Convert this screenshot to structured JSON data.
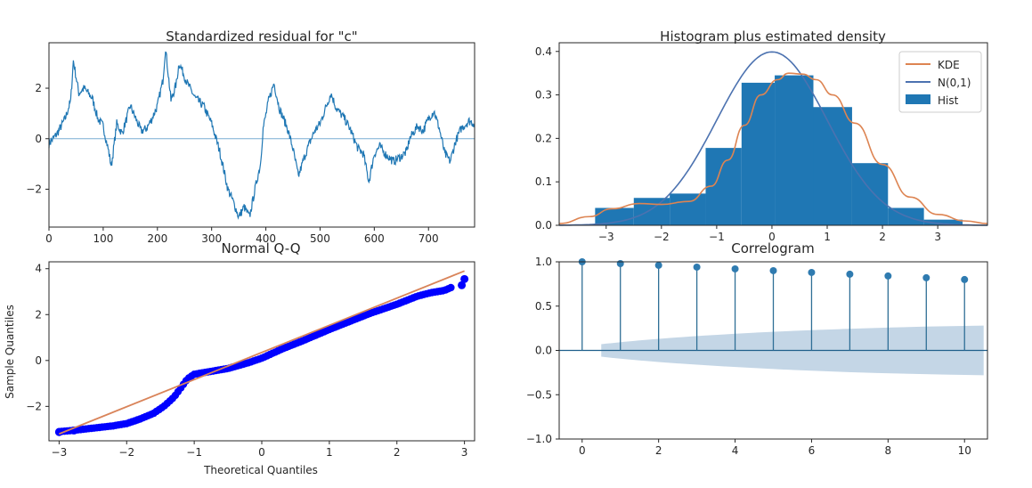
{
  "colors": {
    "series_blue": "#1f77b4",
    "kde_orange": "#dd8452",
    "normal_gray": "#4c72b0",
    "qq_point": "#0000ff",
    "qq_line": "#d9845a",
    "conf_band": "#b0c8dd",
    "axis": "#262626"
  },
  "chart_data": [
    {
      "type": "line",
      "title": "Standardized residual for \"c\"",
      "xlabel": "",
      "ylabel": "",
      "xlim": [
        0,
        785
      ],
      "ylim": [
        -3.5,
        3.8
      ],
      "x_ticks": [
        0,
        100,
        200,
        300,
        400,
        500,
        600,
        700
      ],
      "y_ticks": [
        -2,
        0,
        2
      ],
      "grid": false,
      "reference_line_y": 0,
      "keypoints": [
        [
          0,
          -0.2
        ],
        [
          15,
          0.2
        ],
        [
          30,
          0.8
        ],
        [
          40,
          1.5
        ],
        [
          45,
          3.1
        ],
        [
          55,
          1.8
        ],
        [
          65,
          2.0
        ],
        [
          80,
          1.6
        ],
        [
          90,
          0.8
        ],
        [
          100,
          0.5
        ],
        [
          110,
          -0.5
        ],
        [
          115,
          -1.1
        ],
        [
          125,
          0.6
        ],
        [
          135,
          0.2
        ],
        [
          150,
          1.3
        ],
        [
          160,
          0.8
        ],
        [
          170,
          0.3
        ],
        [
          180,
          0.4
        ],
        [
          190,
          0.8
        ],
        [
          200,
          1.3
        ],
        [
          210,
          2.3
        ],
        [
          215,
          3.6
        ],
        [
          225,
          1.5
        ],
        [
          235,
          2.2
        ],
        [
          240,
          3.0
        ],
        [
          255,
          2.2
        ],
        [
          270,
          1.6
        ],
        [
          285,
          1.3
        ],
        [
          300,
          0.6
        ],
        [
          315,
          -0.5
        ],
        [
          330,
          -2.0
        ],
        [
          340,
          -2.5
        ],
        [
          350,
          -3.1
        ],
        [
          360,
          -2.7
        ],
        [
          370,
          -3.1
        ],
        [
          380,
          -2.0
        ],
        [
          390,
          -1.0
        ],
        [
          395,
          0.4
        ],
        [
          405,
          1.5
        ],
        [
          415,
          2.2
        ],
        [
          425,
          1.2
        ],
        [
          440,
          0.4
        ],
        [
          450,
          -0.4
        ],
        [
          460,
          -1.5
        ],
        [
          470,
          -0.8
        ],
        [
          480,
          -0.2
        ],
        [
          490,
          0.3
        ],
        [
          500,
          0.6
        ],
        [
          510,
          1.2
        ],
        [
          520,
          1.8
        ],
        [
          530,
          1.2
        ],
        [
          545,
          0.8
        ],
        [
          555,
          0.4
        ],
        [
          570,
          -0.4
        ],
        [
          580,
          -0.6
        ],
        [
          590,
          -1.7
        ],
        [
          600,
          -0.6
        ],
        [
          610,
          -0.3
        ],
        [
          620,
          -0.6
        ],
        [
          635,
          -0.9
        ],
        [
          650,
          -0.7
        ],
        [
          660,
          -0.5
        ],
        [
          665,
          0.0
        ],
        [
          680,
          0.5
        ],
        [
          690,
          0.3
        ],
        [
          700,
          0.8
        ],
        [
          710,
          1.1
        ],
        [
          720,
          0.4
        ],
        [
          730,
          -0.6
        ],
        [
          740,
          -0.9
        ],
        [
          750,
          -0.1
        ],
        [
          760,
          0.4
        ],
        [
          775,
          0.7
        ],
        [
          785,
          0.6
        ]
      ]
    },
    {
      "type": "bar",
      "title": "Histogram plus estimated density",
      "xlim": [
        -3.85,
        3.9
      ],
      "ylim": [
        0,
        0.42
      ],
      "x_ticks": [
        -3,
        -2,
        -1,
        0,
        1,
        2,
        3
      ],
      "y_ticks": [
        0.0,
        0.1,
        0.2,
        0.3,
        0.4
      ],
      "legend_position": "top-right",
      "hist": {
        "name": "Hist",
        "bin_edges": [
          -3.2,
          -2.5,
          -1.85,
          -1.2,
          -0.55,
          0.05,
          0.75,
          1.45,
          2.1,
          2.75,
          3.45
        ],
        "values": [
          0.04,
          0.063,
          0.073,
          0.178,
          0.328,
          0.345,
          0.272,
          0.143,
          0.04,
          0.013
        ]
      },
      "series": [
        {
          "name": "KDE",
          "kind": "kde",
          "x": [
            -3.85,
            -3.3,
            -2.9,
            -2.4,
            -2.0,
            -1.5,
            -1.1,
            -0.8,
            -0.5,
            -0.2,
            0.1,
            0.3,
            0.55,
            0.8,
            1.1,
            1.5,
            2.0,
            2.5,
            3.0,
            3.5,
            3.9
          ],
          "y": [
            0.004,
            0.02,
            0.038,
            0.05,
            0.048,
            0.055,
            0.09,
            0.15,
            0.23,
            0.3,
            0.335,
            0.35,
            0.348,
            0.335,
            0.3,
            0.235,
            0.14,
            0.065,
            0.025,
            0.01,
            0.004
          ]
        },
        {
          "name": "N(0,1)",
          "kind": "normal",
          "mean": 0,
          "sd": 1
        }
      ]
    },
    {
      "type": "scatter",
      "title": "Normal Q-Q",
      "xlabel": "Theoretical Quantiles",
      "ylabel": "Sample Quantiles",
      "xlim": [
        -3.15,
        3.15
      ],
      "ylim": [
        -3.5,
        4.3
      ],
      "x_ticks": [
        -3,
        -2,
        -1,
        0,
        1,
        2,
        3
      ],
      "y_ticks": [
        -2,
        0,
        2,
        4
      ],
      "reference_line": {
        "x": [
          -3.0,
          3.0
        ],
        "y": [
          -3.2,
          3.9
        ]
      },
      "curve": {
        "x": [
          -3.0,
          -2.8,
          -2.5,
          -2.2,
          -2.0,
          -1.8,
          -1.6,
          -1.45,
          -1.3,
          -1.2,
          -1.1,
          -1.0,
          -0.8,
          -0.5,
          -0.2,
          0.0,
          0.3,
          0.6,
          1.0,
          1.3,
          1.6,
          2.0,
          2.3,
          2.5,
          2.7,
          2.82
        ],
        "y": [
          -3.1,
          -3.05,
          -2.95,
          -2.85,
          -2.75,
          -2.55,
          -2.3,
          -2.0,
          -1.6,
          -1.2,
          -0.8,
          -0.6,
          -0.5,
          -0.35,
          -0.1,
          0.1,
          0.5,
          0.85,
          1.35,
          1.7,
          2.05,
          2.45,
          2.8,
          2.95,
          3.05,
          3.2
        ]
      },
      "extreme_points": [
        [
          2.96,
          3.28
        ],
        [
          3.0,
          3.55
        ],
        [
          -3.0,
          -3.12
        ],
        [
          -2.78,
          -3.05
        ]
      ]
    },
    {
      "type": "bar",
      "subtype": "stem",
      "title": "Correlogram",
      "xlim": [
        -0.6,
        10.6
      ],
      "ylim": [
        -1.0,
        1.0
      ],
      "x_ticks": [
        0,
        2,
        4,
        6,
        8,
        10
      ],
      "y_ticks": [
        -1.0,
        -0.5,
        0.0,
        0.5,
        1.0
      ],
      "lags": [
        0,
        1,
        2,
        3,
        4,
        5,
        6,
        7,
        8,
        9,
        10
      ],
      "values": [
        1.0,
        0.98,
        0.96,
        0.94,
        0.92,
        0.9,
        0.88,
        0.86,
        0.84,
        0.82,
        0.8
      ],
      "confidence_band": {
        "x": [
          0.5,
          10.5
        ],
        "upper_start": 0.07,
        "upper_end": 0.28
      }
    }
  ]
}
